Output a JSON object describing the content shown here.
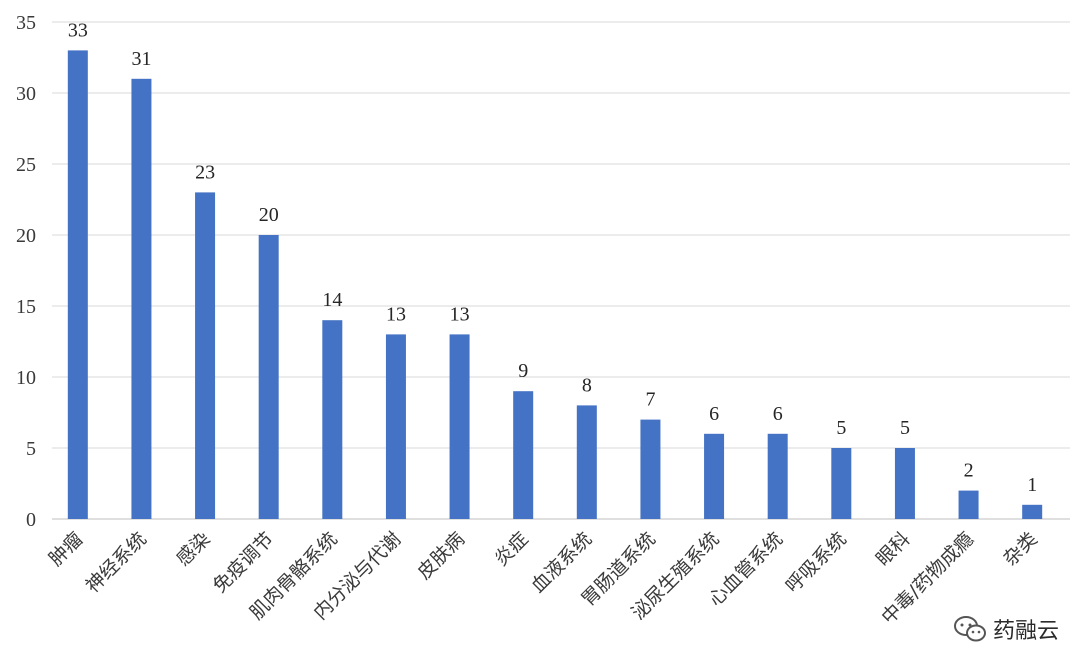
{
  "chart_data": {
    "type": "bar",
    "categories": [
      "肿瘤",
      "神经系统",
      "感染",
      "免疫调节",
      "肌肉骨骼系统",
      "内分泌与代谢",
      "皮肤病",
      "炎症",
      "血液系统",
      "胃肠道系统",
      "泌尿生殖系统",
      "心血管系统",
      "呼吸系统",
      "眼科",
      "中毒/药物成瘾",
      "杂类"
    ],
    "values": [
      33,
      31,
      23,
      20,
      14,
      13,
      13,
      9,
      8,
      7,
      6,
      6,
      5,
      5,
      2,
      1
    ],
    "ylim": [
      0,
      35
    ],
    "yticks": [
      "0",
      "5",
      "10",
      "15",
      "20",
      "25",
      "30",
      "35"
    ],
    "bar_color": "#4472C4",
    "grid": true,
    "title": "",
    "xlabel": "",
    "ylabel": ""
  },
  "watermark": {
    "text": "药融云",
    "icon": "wechat-icon"
  }
}
